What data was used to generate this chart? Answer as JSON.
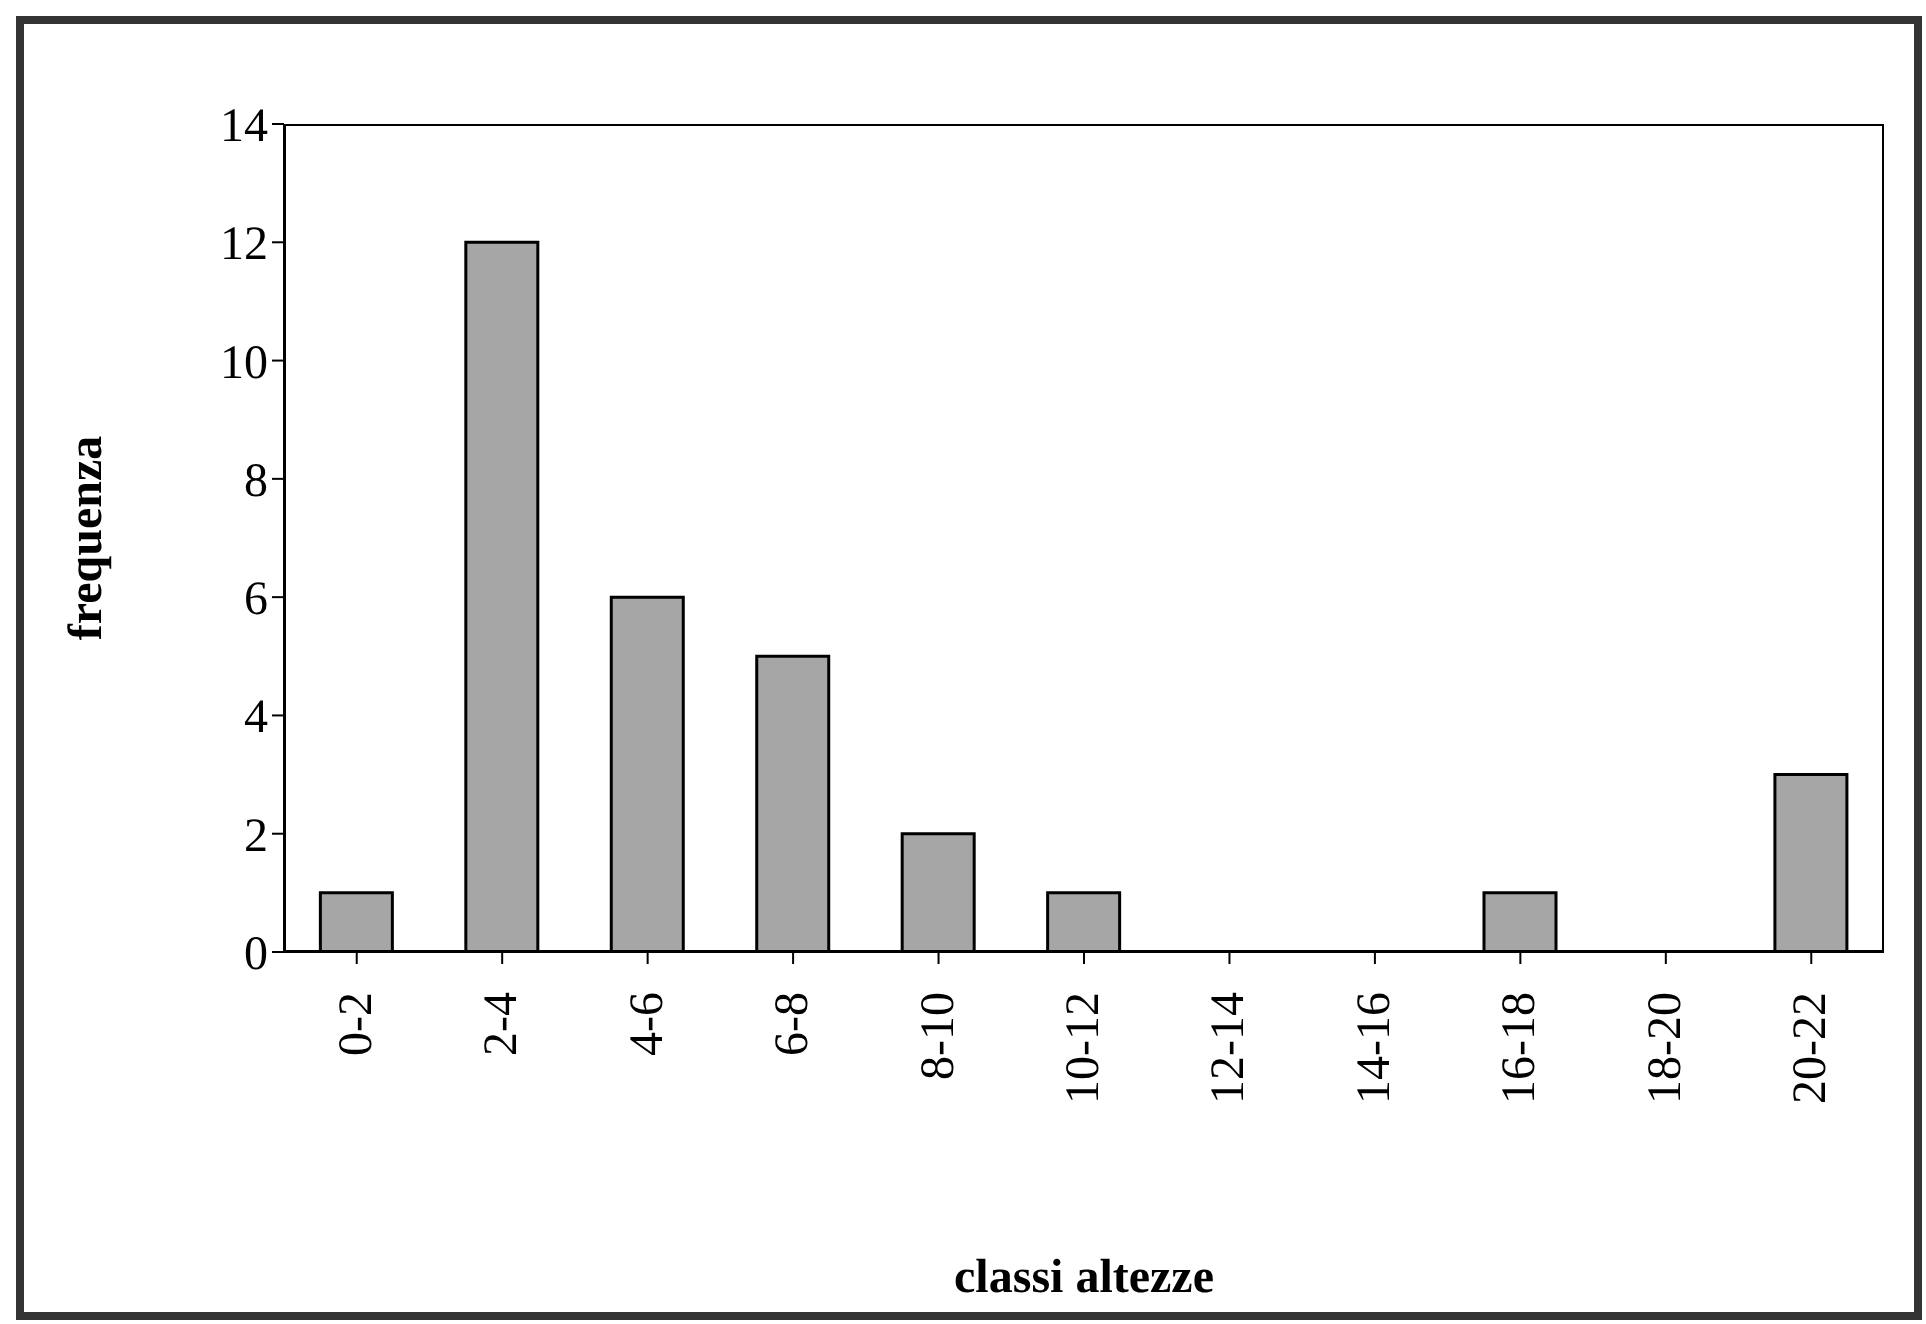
{
  "chart_data": {
    "type": "bar",
    "xlabel": "classi altezze",
    "ylabel": "frequenza",
    "categories": [
      "0-2",
      "2-4",
      "4-6",
      "6-8",
      "8-10",
      "10-12",
      "12-14",
      "14-16",
      "16-18",
      "18-20",
      "20-22"
    ],
    "values": [
      1,
      12,
      6,
      5,
      2,
      1,
      0,
      0,
      1,
      0,
      3
    ],
    "color": "#a6a6a6",
    "ylim": [
      0,
      14
    ],
    "yticks": [
      0,
      2,
      4,
      6,
      8,
      10,
      12,
      14
    ],
    "grid": false
  }
}
